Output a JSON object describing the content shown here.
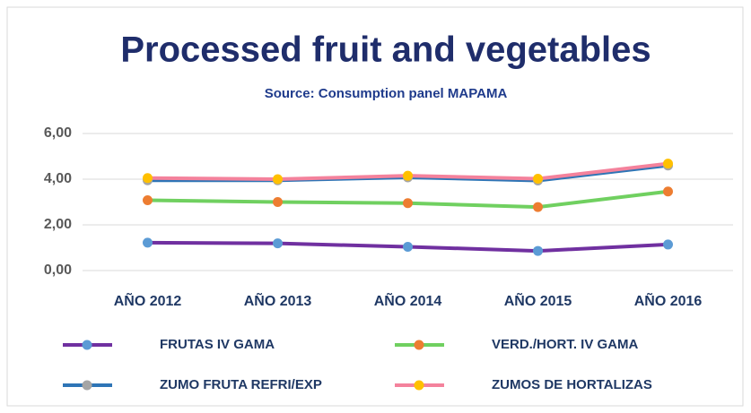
{
  "chart_data": {
    "type": "line",
    "title": "Processed fruit and vegetables",
    "subtitle": "Source: Consumption panel MAPAMA",
    "categories": [
      "AÑO 2012",
      "AÑO 2013",
      "AÑO 2014",
      "AÑO 2015",
      "AÑO 2016"
    ],
    "series": [
      {
        "name": "FRUTAS IV GAMA",
        "color": "#7030a0",
        "marker_color": "#5b9bd5",
        "values": [
          1.22,
          1.19,
          1.04,
          0.86,
          1.14
        ]
      },
      {
        "name": "VERD./HORT. IV GAMA",
        "color": "#70d060",
        "marker_color": "#ed7d31",
        "values": [
          3.08,
          3.0,
          2.95,
          2.78,
          3.46
        ]
      },
      {
        "name": "ZUMO FRUTA REFRI/EXP",
        "color": "#2e75b6",
        "marker_color": "#a5a5a5",
        "values": [
          3.95,
          3.95,
          4.08,
          3.94,
          4.6
        ]
      },
      {
        "name": "ZUMOS DE HORTALIZAS",
        "color": "#f4829c",
        "marker_color": "#ffc000",
        "values": [
          4.05,
          4.0,
          4.15,
          4.02,
          4.68
        ]
      }
    ],
    "ylim": [
      0,
      6
    ],
    "yticks": [
      {
        "value": 0,
        "label": "0,00"
      },
      {
        "value": 2,
        "label": "2,00"
      },
      {
        "value": 4,
        "label": "4,00"
      },
      {
        "value": 6,
        "label": "6,00"
      }
    ],
    "grid": true
  }
}
